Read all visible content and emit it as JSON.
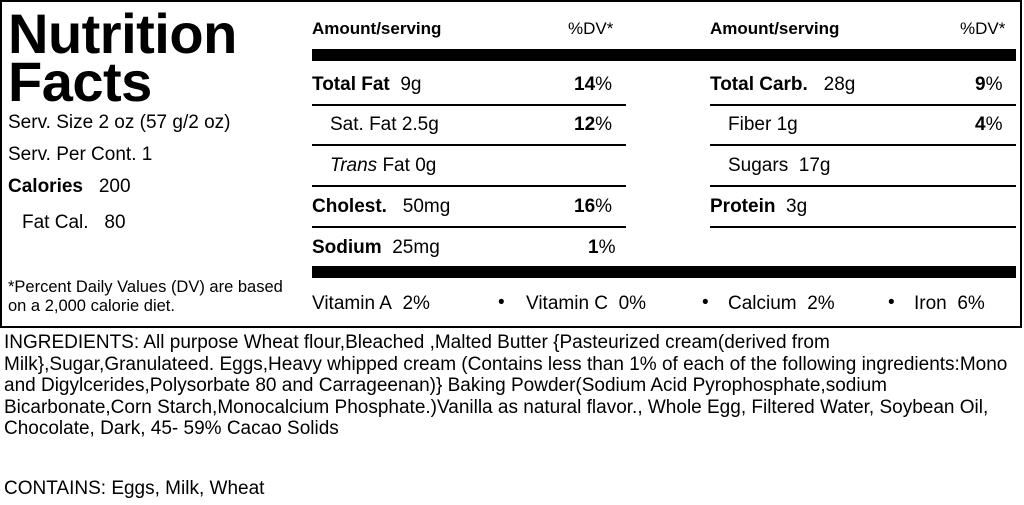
{
  "title": {
    "line1": "Nutrition",
    "line2": "Facts"
  },
  "serving": {
    "size": "Serv. Size 2  oz  (57 g/2 oz)",
    "per_cont": "Serv. Per Cont. 1",
    "calories_label": "Calories",
    "calories_value": "200",
    "fat_cal_label": "Fat Cal.",
    "fat_cal_value": "80"
  },
  "footnote": "*Percent Daily Values (DV) are based on a 2,000 calorie diet.",
  "headers": {
    "amount1": "Amount/serving",
    "dv1": "%DV*",
    "amount2": "Amount/serving",
    "dv2": "%DV*"
  },
  "nutrients_left": {
    "total_fat": {
      "name": "Total Fat",
      "amount": "9g",
      "dv": "14"
    },
    "sat_fat": {
      "name": "Sat. Fat",
      "amount": "2.5g",
      "dv": "12"
    },
    "trans_fat": {
      "name_italic": "Trans",
      "name": "Fat",
      "amount": "0g"
    },
    "cholest": {
      "name": "Cholest.",
      "amount": "50mg",
      "dv": "16"
    },
    "sodium": {
      "name": "Sodium",
      "amount": "25mg",
      "dv": "1"
    }
  },
  "nutrients_right": {
    "total_carb": {
      "name": "Total Carb.",
      "amount": "28g",
      "dv": "9"
    },
    "fiber": {
      "name": "Fiber",
      "amount": "1g",
      "dv": "4"
    },
    "sugars": {
      "name": "Sugars",
      "amount": "17g"
    },
    "protein": {
      "name": "Protein",
      "amount": "3g"
    }
  },
  "percent_sign": "%",
  "vitamins": [
    {
      "name": "Vitamin A",
      "value": "2%"
    },
    {
      "name": "Vitamin C",
      "value": "0%"
    },
    {
      "name": "Calcium",
      "value": "2%"
    },
    {
      "name": "Iron",
      "value": "6%"
    }
  ],
  "bullet": "•",
  "ingredients": "INGREDIENTS: All purpose Wheat flour,Bleached ,Malted Butter {Pasteurized cream(derived from Milk},Sugar,Granulateed. Eggs,Heavy whipped cream (Contains less than 1% of each of the following ingredients:Mono and Digylcerides,Polysorbate 80 and Carrageenan)} Baking Powder(Sodium Acid Pyrophosphate,sodium Bicarbonate,Corn Starch,Monocalcium Phosphate.)Vanilla as natural flavor., Whole Egg, Filtered Water, Soybean Oil, Chocolate, Dark, 45- 59% Cacao Solids",
  "contains": "CONTAINS: Eggs, Milk, Wheat"
}
